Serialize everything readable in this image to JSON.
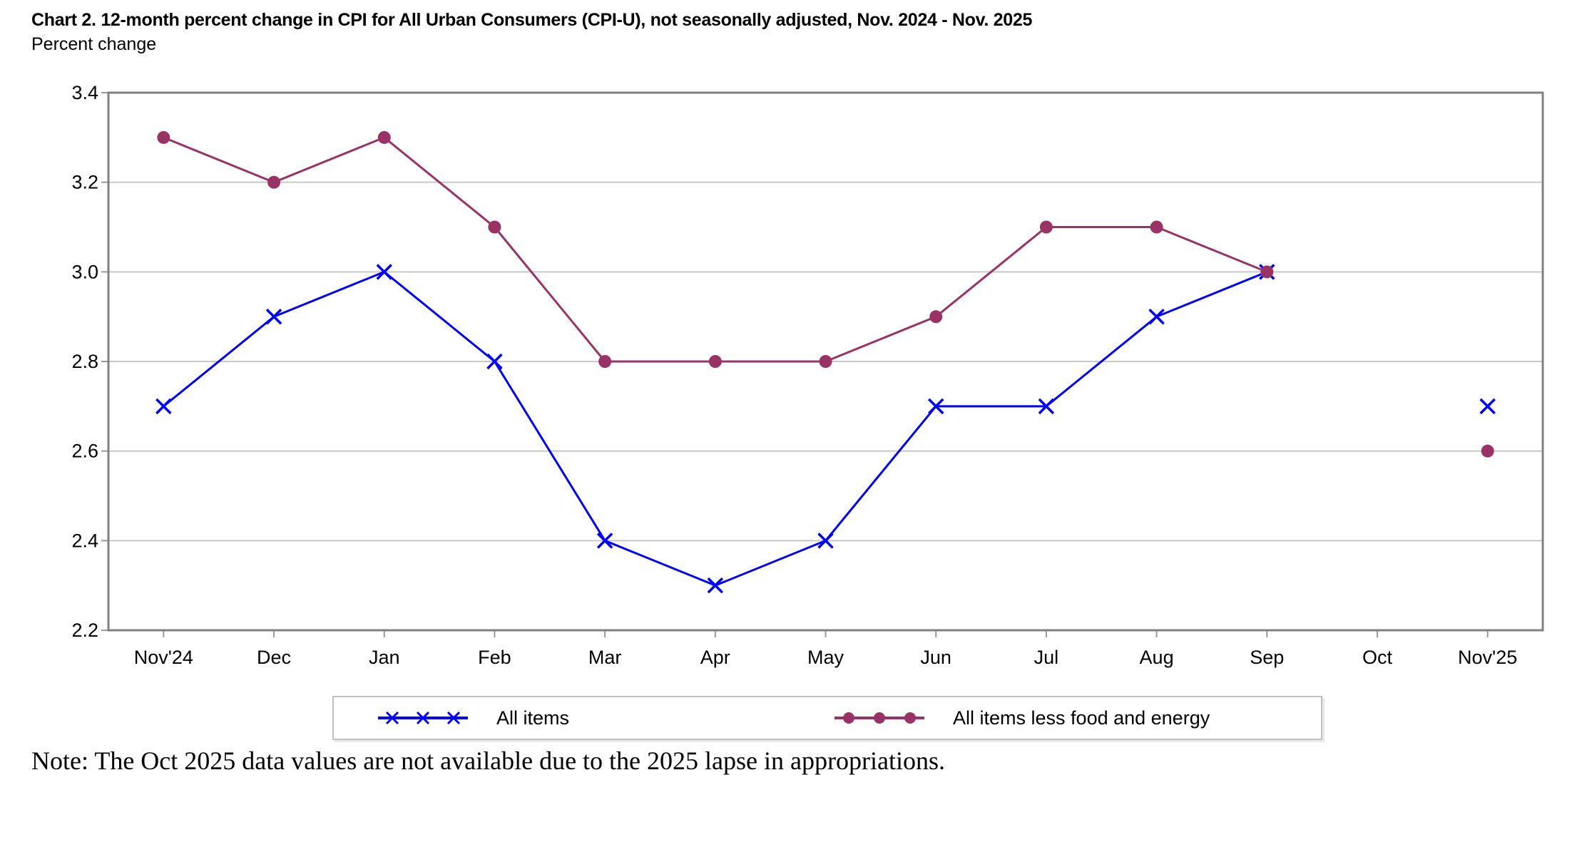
{
  "chart_data": {
    "type": "line",
    "title": "Chart 2. 12-month percent change in CPI for All Urban Consumers (CPI-U), not seasonally adjusted, Nov. 2024 - Nov. 2025",
    "ylabel": "Percent change",
    "xlabel": "",
    "categories": [
      "Nov'24",
      "Dec",
      "Jan",
      "Feb",
      "Mar",
      "Apr",
      "May",
      "Jun",
      "Jul",
      "Aug",
      "Sep",
      "Oct",
      "Nov'25"
    ],
    "series": [
      {
        "name": "All items",
        "marker": "x-cross",
        "color": "#0000ff",
        "values": [
          2.7,
          2.9,
          3.0,
          2.8,
          2.4,
          2.3,
          2.4,
          2.7,
          2.7,
          2.9,
          3.0,
          null,
          2.7
        ]
      },
      {
        "name": "All items less food and energy",
        "marker": "filled-circle",
        "color": "#993366",
        "values": [
          3.3,
          3.2,
          3.3,
          3.1,
          2.8,
          2.8,
          2.8,
          2.9,
          3.1,
          3.1,
          3.0,
          null,
          2.6
        ]
      }
    ],
    "ylim": [
      2.2,
      3.4
    ],
    "yticks": [
      "2.2",
      "2.4",
      "2.6",
      "2.8",
      "3.0",
      "3.2",
      "3.4"
    ],
    "grid": true,
    "legend_position": "bottom",
    "missing_data_category": "Oct"
  },
  "note": "Note: The Oct 2025 data values are not available due to the 2025 lapse in appropriations.",
  "colors": {
    "gridline": "#c8c8c8",
    "axis_border": "#808080",
    "tick": "#999999",
    "legend_border": "#c0c0c0",
    "text": "#000000"
  }
}
